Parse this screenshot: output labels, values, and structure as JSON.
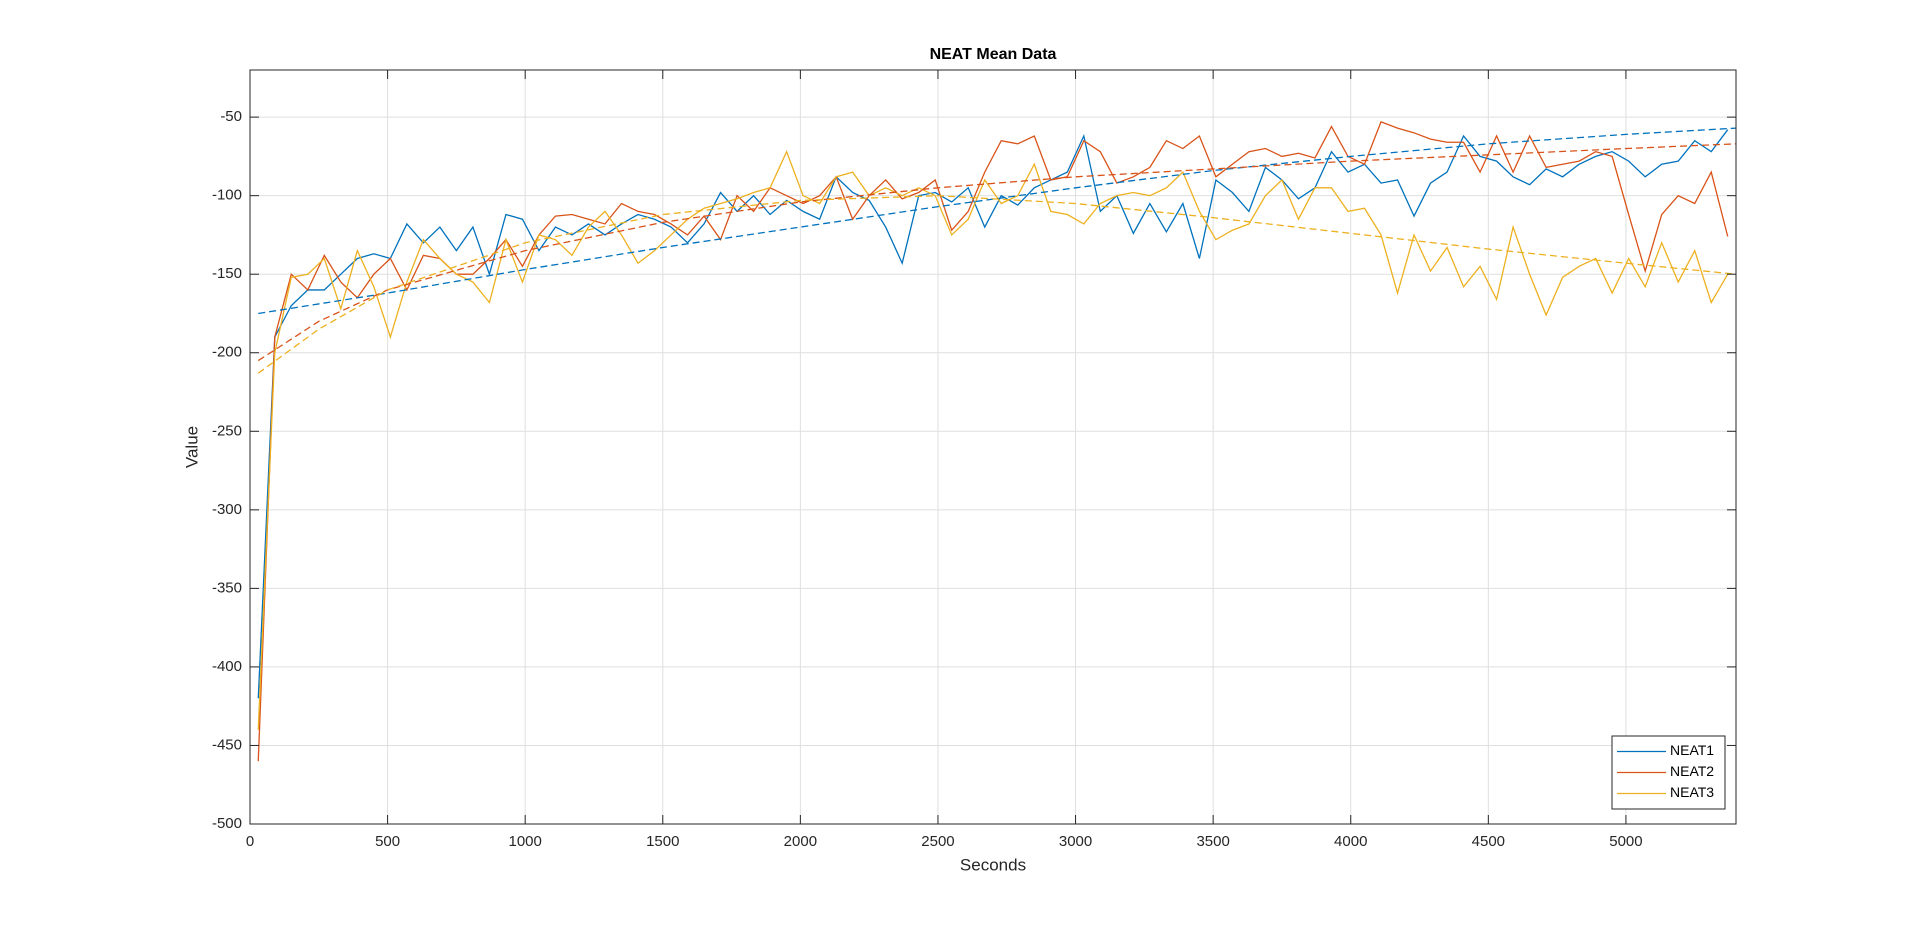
{
  "chart_data": {
    "type": "line",
    "title": "NEAT Mean Data",
    "x_label": "Seconds",
    "y_label": "Value",
    "xlim": [
      0,
      5400
    ],
    "xticks": [
      0,
      500,
      1000,
      1500,
      2000,
      2500,
      3000,
      3500,
      4000,
      4500,
      5000
    ],
    "ylim": [
      -500,
      -20
    ],
    "yticks": [
      -500,
      -450,
      -400,
      -350,
      -300,
      -250,
      -200,
      -150,
      -100,
      -50
    ],
    "grid": true,
    "legend": "southeast",
    "x": [
      30,
      90,
      150,
      210,
      270,
      330,
      390,
      450,
      510,
      570,
      630,
      690,
      750,
      810,
      870,
      930,
      990,
      1050,
      1110,
      1170,
      1230,
      1290,
      1350,
      1410,
      1470,
      1530,
      1590,
      1650,
      1710,
      1770,
      1830,
      1890,
      1950,
      2010,
      2070,
      2130,
      2190,
      2250,
      2310,
      2370,
      2430,
      2490,
      2550,
      2610,
      2670,
      2730,
      2790,
      2850,
      2910,
      2970,
      3030,
      3090,
      3150,
      3210,
      3270,
      3330,
      3390,
      3450,
      3510,
      3570,
      3630,
      3690,
      3750,
      3810,
      3870,
      3930,
      3990,
      4050,
      4110,
      4170,
      4230,
      4290,
      4350,
      4410,
      4470,
      4530,
      4590,
      4650,
      4710,
      4770,
      4830,
      4890,
      4950,
      5010,
      5070,
      5130,
      5190,
      5250,
      5310,
      5370
    ],
    "series": [
      {
        "name": "NEAT1",
        "color": "#0072BD",
        "style": "solid",
        "values": [
          -420,
          -190,
          -170,
          -160,
          -160,
          -150,
          -140,
          -137,
          -140,
          -118,
          -130,
          -120,
          -135,
          -120,
          -150,
          -112,
          -115,
          -135,
          -120,
          -125,
          -118,
          -125,
          -118,
          -112,
          -115,
          -120,
          -130,
          -118,
          -98,
          -110,
          -100,
          -112,
          -103,
          -110,
          -115,
          -88,
          -98,
          -103,
          -120,
          -143,
          -100,
          -98,
          -104,
          -95,
          -120,
          -100,
          -106,
          -95,
          -90,
          -85,
          -62,
          -110,
          -100,
          -124,
          -105,
          -123,
          -105,
          -140,
          -90,
          -98,
          -110,
          -82,
          -90,
          -102,
          -95,
          -72,
          -85,
          -80,
          -92,
          -90,
          -113,
          -92,
          -85,
          -62,
          -75,
          -78,
          -88,
          -93,
          -83,
          -88,
          -80,
          -75,
          -72,
          -78,
          -88,
          -80,
          -78,
          -65,
          -72,
          -58
        ]
      },
      {
        "name": "NEAT2",
        "color": "#D95319",
        "style": "solid",
        "values": [
          -460,
          -190,
          -150,
          -160,
          -138,
          -155,
          -165,
          -150,
          -140,
          -160,
          -138,
          -140,
          -150,
          -150,
          -140,
          -128,
          -145,
          -125,
          -113,
          -112,
          -115,
          -118,
          -105,
          -110,
          -112,
          -118,
          -125,
          -113,
          -128,
          -100,
          -110,
          -95,
          -100,
          -105,
          -100,
          -88,
          -115,
          -100,
          -90,
          -102,
          -98,
          -90,
          -122,
          -110,
          -85,
          -65,
          -67,
          -62,
          -90,
          -88,
          -65,
          -72,
          -92,
          -88,
          -82,
          -65,
          -70,
          -62,
          -88,
          -80,
          -72,
          -70,
          -75,
          -73,
          -76,
          -56,
          -75,
          -80,
          -53,
          -57,
          -60,
          -64,
          -66,
          -66,
          -85,
          -62,
          -85,
          -62,
          -82,
          -80,
          -78,
          -72,
          -75,
          -112,
          -148,
          -112,
          -100,
          -105,
          -85,
          -126
        ]
      },
      {
        "name": "NEAT3",
        "color": "#EDB120",
        "style": "solid",
        "values": [
          -440,
          -200,
          -152,
          -150,
          -140,
          -172,
          -135,
          -158,
          -190,
          -155,
          -128,
          -140,
          -150,
          -155,
          -168,
          -128,
          -155,
          -125,
          -128,
          -138,
          -120,
          -110,
          -125,
          -143,
          -135,
          -125,
          -115,
          -108,
          -105,
          -102,
          -98,
          -95,
          -72,
          -100,
          -105,
          -88,
          -85,
          -100,
          -95,
          -100,
          -95,
          -100,
          -125,
          -115,
          -90,
          -105,
          -100,
          -80,
          -110,
          -112,
          -118,
          -105,
          -100,
          -98,
          -100,
          -95,
          -85,
          -110,
          -128,
          -122,
          -118,
          -100,
          -90,
          -115,
          -95,
          -95,
          -110,
          -108,
          -125,
          -162,
          -125,
          -148,
          -133,
          -158,
          -145,
          -166,
          -120,
          -150,
          -176,
          -152,
          -145,
          -140,
          -162,
          -140,
          -158,
          -130,
          -155,
          -135,
          -168,
          -150
        ]
      },
      {
        "color": "#0072BD",
        "style": "dashed",
        "x": [
          30,
          500,
          1000,
          1500,
          2000,
          2500,
          3000,
          3500,
          4000,
          4500,
          5000,
          5400
        ],
        "values": [
          -175,
          -162,
          -147,
          -133,
          -120,
          -107,
          -95,
          -84,
          -75,
          -67,
          -61,
          -57
        ]
      },
      {
        "color": "#D95319",
        "style": "dashed",
        "x": [
          30,
          250,
          500,
          1000,
          1500,
          2000,
          2500,
          3000,
          3500,
          4000,
          4500,
          5000,
          5400
        ],
        "values": [
          -205,
          -180,
          -160,
          -135,
          -117,
          -104,
          -95,
          -88,
          -83,
          -78,
          -74,
          -70,
          -67
        ]
      },
      {
        "color": "#EDB120",
        "style": "dashed",
        "x": [
          30,
          250,
          500,
          1000,
          1500,
          2000,
          2500,
          3000,
          3500,
          4000,
          4500,
          5000,
          5400
        ],
        "values": [
          -213,
          -185,
          -160,
          -130,
          -112,
          -103,
          -100,
          -105,
          -114,
          -124,
          -134,
          -143,
          -150
        ]
      }
    ]
  }
}
